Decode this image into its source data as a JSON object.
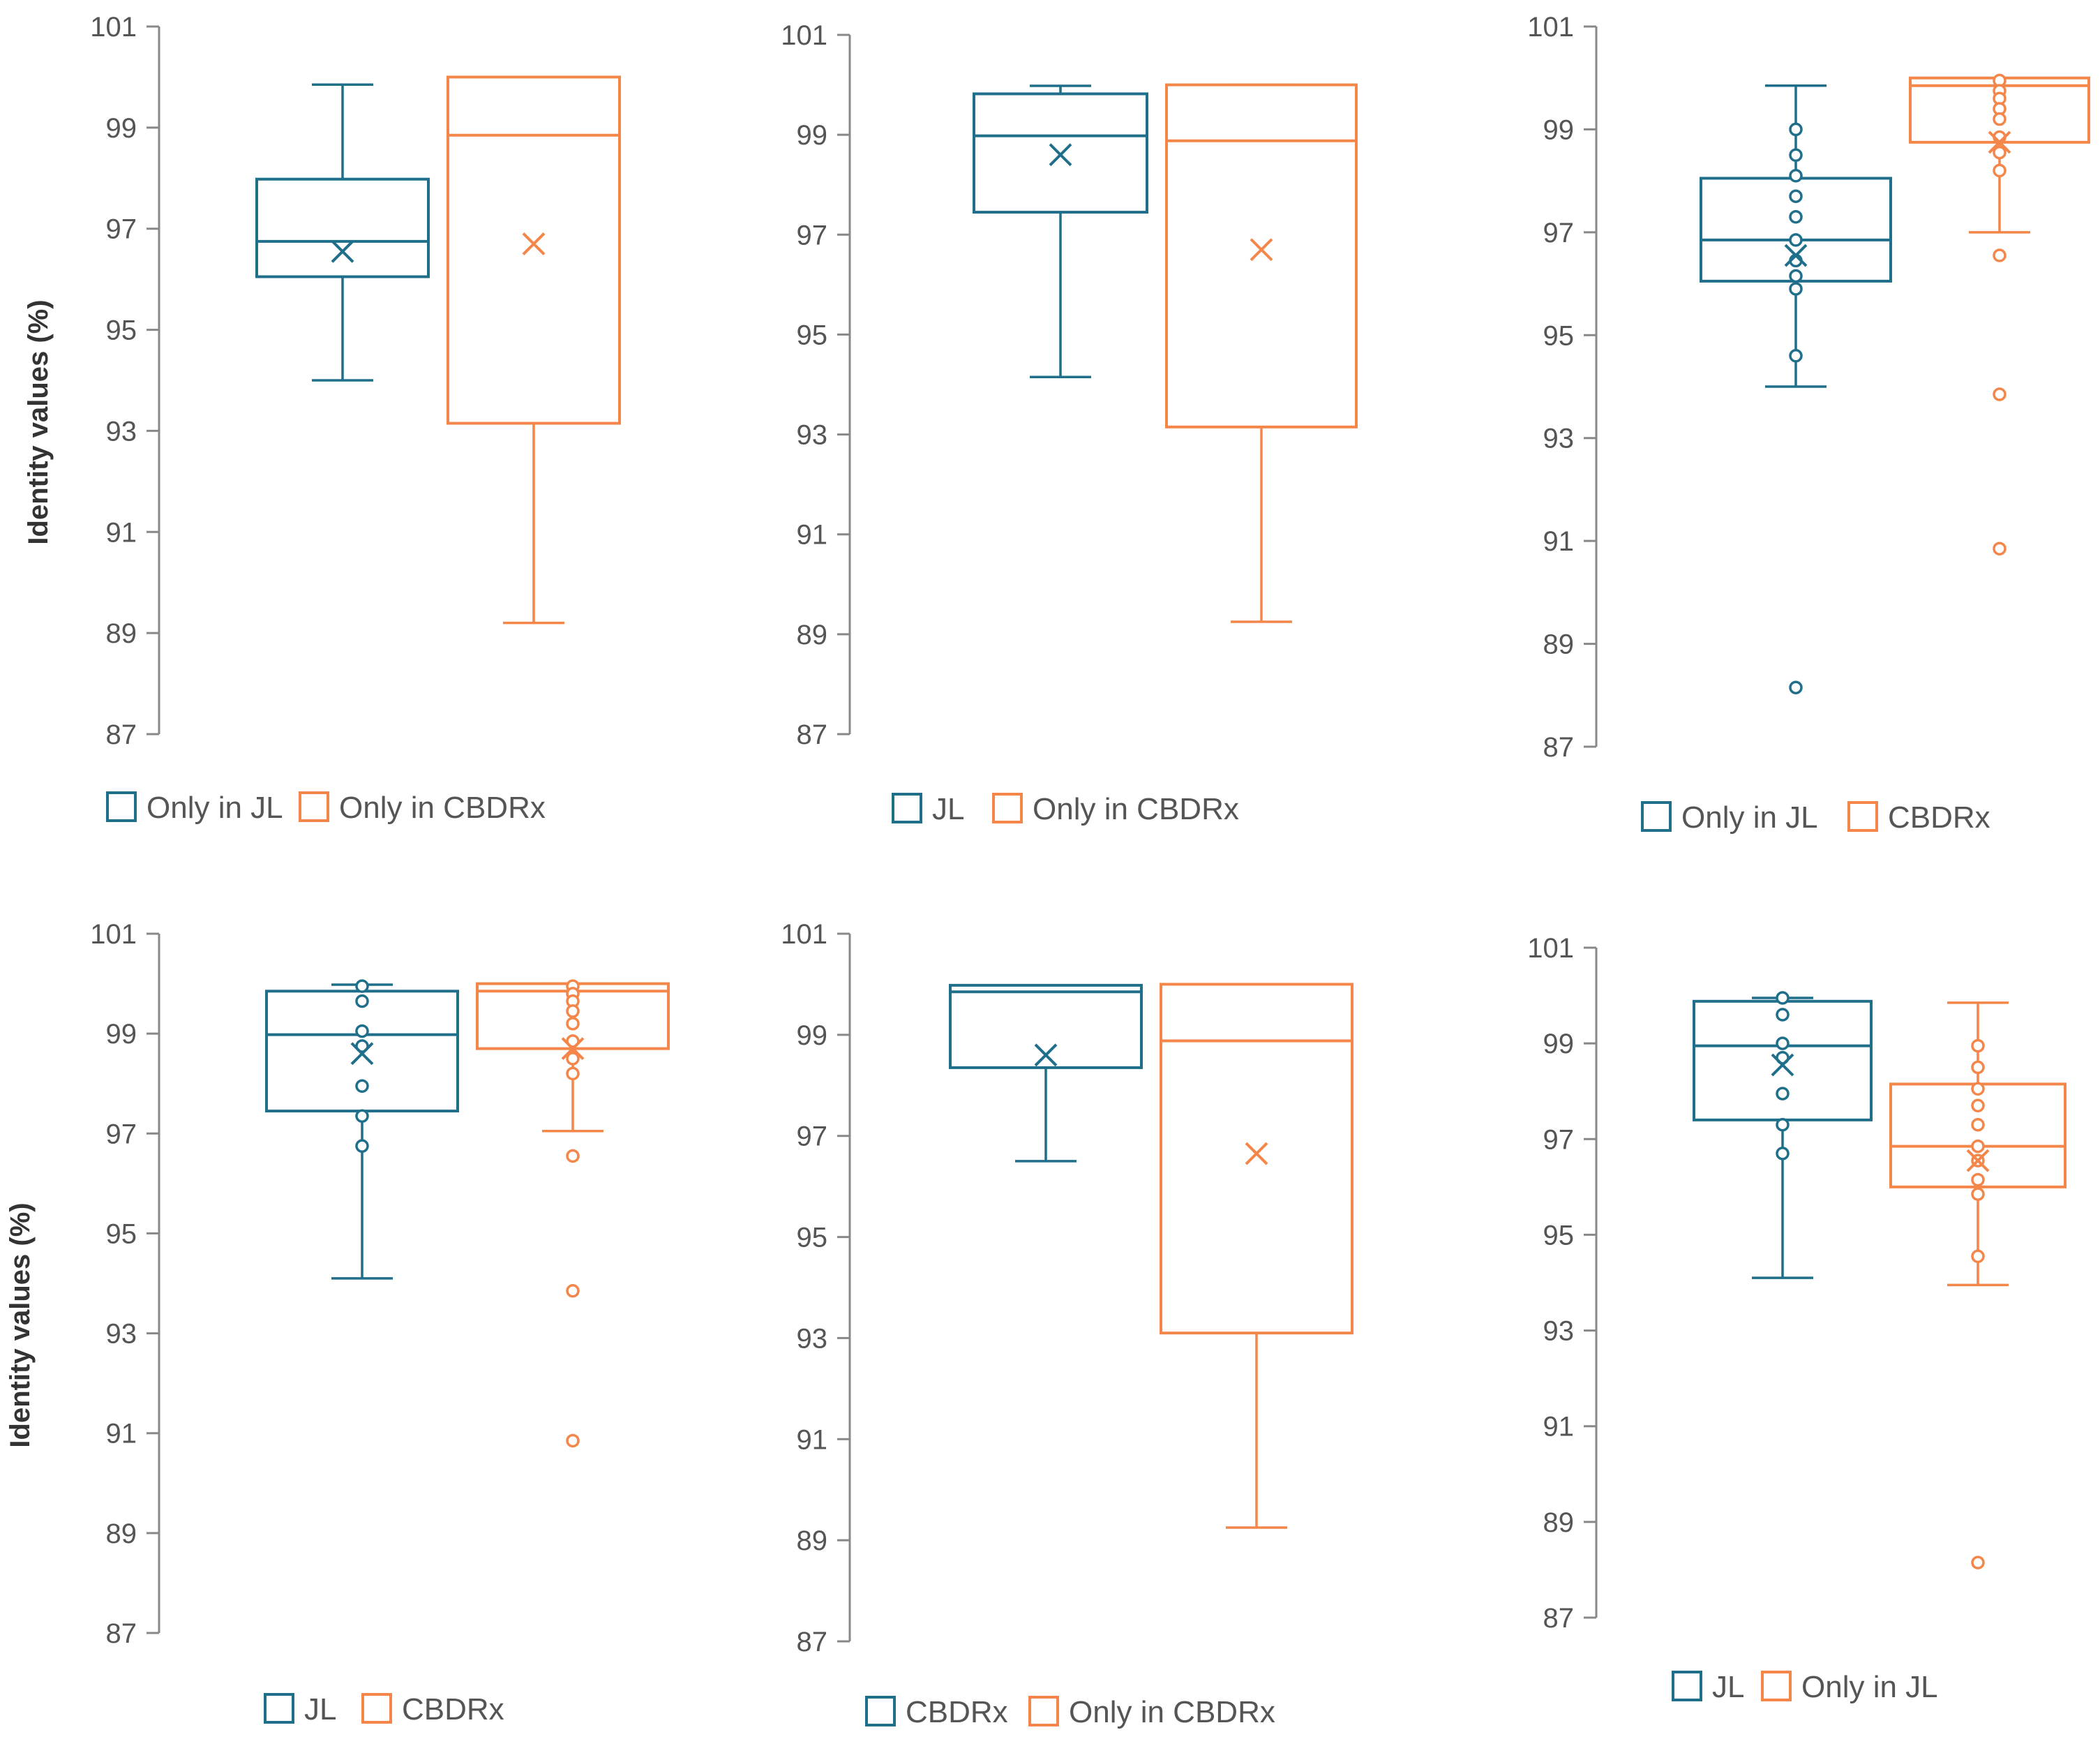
{
  "colors": {
    "blue": "#1f6f8b",
    "orange": "#f4864a",
    "axis": "#888888"
  },
  "chart_data": [
    {
      "type": "box",
      "ylabel": "Identity values (%)",
      "ylim": [
        87,
        101
      ],
      "yticks": [
        "101",
        "99",
        "97",
        "95",
        "93",
        "91",
        "89",
        "87"
      ],
      "series": [
        {
          "name": "Only in JL",
          "color": "blue",
          "min": 94.0,
          "q1": 96.05,
          "median": 96.75,
          "q3": 97.98,
          "max": 99.85,
          "mean": 96.55,
          "outliers": []
        },
        {
          "name": "Only in CBDRx",
          "color": "orange",
          "min": 89.2,
          "q1": 93.15,
          "median": 98.85,
          "q3": 100.0,
          "max": 100.0,
          "mean": 96.7,
          "outliers": []
        }
      ]
    },
    {
      "type": "box",
      "ylabel": "",
      "ylim": [
        87,
        101
      ],
      "yticks": [
        "101",
        "99",
        "97",
        "95",
        "93",
        "91",
        "89",
        "87"
      ],
      "series": [
        {
          "name": "JL",
          "color": "blue",
          "min": 94.15,
          "q1": 97.45,
          "median": 98.98,
          "q3": 99.82,
          "max": 99.98,
          "mean": 98.6,
          "outliers": []
        },
        {
          "name": "Only in CBDRx",
          "color": "orange",
          "min": 89.25,
          "q1": 93.15,
          "median": 98.88,
          "q3": 100.0,
          "max": 100.0,
          "mean": 96.7,
          "outliers": []
        }
      ]
    },
    {
      "type": "box",
      "ylabel": "",
      "ylim": [
        87,
        101
      ],
      "yticks": [
        "101",
        "99",
        "97",
        "95",
        "93",
        "91",
        "89",
        "87"
      ],
      "series": [
        {
          "name": "Only in JL",
          "color": "blue",
          "min": 94.0,
          "q1": 96.05,
          "median": 96.85,
          "q3": 98.05,
          "max": 99.85,
          "mean": 96.55,
          "outliers": [
            99.0,
            98.5,
            98.1,
            97.7,
            97.3,
            96.85,
            96.45,
            96.15,
            95.9,
            94.6,
            88.15
          ]
        },
        {
          "name": "CBDRx",
          "color": "orange",
          "min": 97.0,
          "q1": 98.75,
          "median": 99.85,
          "q3": 100.0,
          "max": 100.0,
          "mean": 98.75,
          "outliers": [
            99.95,
            99.75,
            99.6,
            99.4,
            99.2,
            98.85,
            98.55,
            98.2,
            96.55,
            93.85,
            90.85
          ]
        }
      ]
    },
    {
      "type": "box",
      "ylabel": "Identity values (%)",
      "ylim": [
        87,
        101
      ],
      "yticks": [
        "101",
        "99",
        "97",
        "95",
        "93",
        "91",
        "89",
        "87"
      ],
      "series": [
        {
          "name": "JL",
          "color": "blue",
          "min": 94.1,
          "q1": 97.45,
          "median": 98.98,
          "q3": 99.85,
          "max": 99.98,
          "mean": 98.6,
          "outliers": [
            99.95,
            99.65,
            99.05,
            98.75,
            97.95,
            97.35,
            96.75
          ]
        },
        {
          "name": "CBDRx",
          "color": "orange",
          "min": 97.05,
          "q1": 98.7,
          "median": 99.85,
          "q3": 100.0,
          "max": 100.0,
          "mean": 98.7,
          "outliers": [
            99.95,
            99.8,
            99.65,
            99.45,
            99.2,
            98.85,
            98.5,
            98.2,
            96.55,
            93.85,
            90.85
          ]
        }
      ]
    },
    {
      "type": "box",
      "ylabel": "",
      "ylim": [
        87,
        101
      ],
      "yticks": [
        "101",
        "99",
        "97",
        "95",
        "93",
        "91",
        "89",
        "87"
      ],
      "series": [
        {
          "name": "CBDRx",
          "color": "blue",
          "min": 96.5,
          "q1": 98.35,
          "median": 99.85,
          "q3": 99.98,
          "max": 99.98,
          "mean": 98.6,
          "outliers": []
        },
        {
          "name": "Only in CBDRx",
          "color": "orange",
          "min": 89.25,
          "q1": 93.1,
          "median": 98.88,
          "q3": 100.0,
          "max": 100.0,
          "mean": 96.65,
          "outliers": []
        }
      ]
    },
    {
      "type": "box",
      "ylabel": "",
      "ylim": [
        87,
        101
      ],
      "yticks": [
        "101",
        "99",
        "97",
        "95",
        "93",
        "91",
        "89",
        "87"
      ],
      "series": [
        {
          "name": "JL",
          "color": "blue",
          "min": 94.1,
          "q1": 97.4,
          "median": 98.95,
          "q3": 99.88,
          "max": 99.95,
          "mean": 98.55,
          "outliers": [
            99.95,
            99.6,
            99.0,
            98.7,
            97.95,
            97.3,
            96.7
          ]
        },
        {
          "name": "Only in JL",
          "color": "orange",
          "min": 93.95,
          "q1": 96.0,
          "median": 96.85,
          "q3": 98.15,
          "max": 99.85,
          "mean": 96.55,
          "outliers": [
            98.95,
            98.5,
            98.05,
            97.7,
            97.3,
            96.85,
            96.55,
            96.15,
            95.85,
            94.55,
            88.15
          ]
        }
      ]
    }
  ]
}
